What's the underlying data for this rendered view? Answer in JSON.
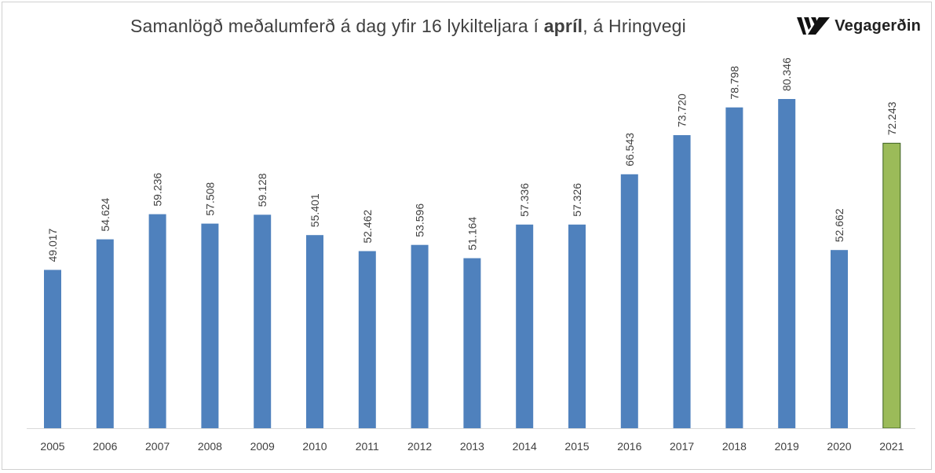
{
  "title": {
    "prefix": "Samanlögð meðalumferð á dag yfir 16 lykilteljara í ",
    "bold": "apríl",
    "suffix": ", á Hringvegi"
  },
  "logo": {
    "text": "Vegagerðin",
    "icon": "vegagerdin-logo-icon"
  },
  "chart_data": {
    "type": "bar",
    "title": "Samanlögð meðalumferð á dag yfir 16 lykilteljara í apríl, á Hringvegi",
    "xlabel": "",
    "ylabel": "",
    "categories": [
      "2005",
      "2006",
      "2007",
      "2008",
      "2009",
      "2010",
      "2011",
      "2012",
      "2013",
      "2014",
      "2015",
      "2016",
      "2017",
      "2018",
      "2019",
      "2020",
      "2021"
    ],
    "values": [
      49017,
      54624,
      59236,
      57508,
      59128,
      55401,
      52462,
      53596,
      51164,
      57336,
      57326,
      66543,
      73720,
      78798,
      80346,
      52662,
      72243
    ],
    "labels": [
      "49.017",
      "54.624",
      "59.236",
      "57.508",
      "59.128",
      "55.401",
      "52.462",
      "53.596",
      "51.164",
      "57.336",
      "57.326",
      "66.543",
      "73.720",
      "78.798",
      "80.346",
      "52.662",
      "72.243"
    ],
    "colors": {
      "default": "#4f81bd",
      "highlight": "#9bbb59",
      "highlight_stroke": "#3a5f1e"
    },
    "highlight_index": 16,
    "ylim": [
      20000,
      80346
    ],
    "grid": false,
    "legend": "none"
  }
}
